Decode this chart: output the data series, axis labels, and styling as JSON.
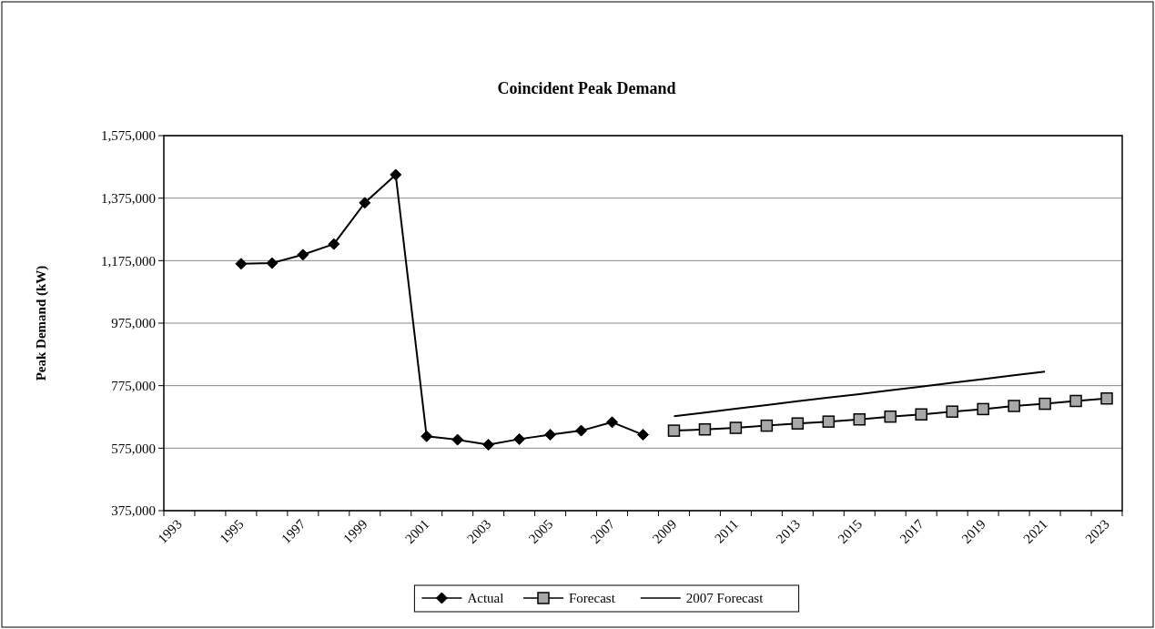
{
  "chart_data": {
    "type": "line",
    "title": "Coincident Peak Demand",
    "ylabel": "Peak Demand (kW)",
    "categories": [
      "1993",
      null,
      "1995",
      null,
      "1997",
      null,
      "1999",
      null,
      "2001",
      null,
      "2003",
      null,
      "2005",
      null,
      "2007",
      null,
      "2009",
      null,
      "2011",
      null,
      "2013",
      null,
      "2015",
      null,
      "2017",
      null,
      "2019",
      null,
      "2021",
      null,
      "2023"
    ],
    "series": [
      {
        "name": "Actual",
        "color": "#000000",
        "marker": "diamond",
        "values": [
          null,
          null,
          1165000,
          1167000,
          1194000,
          1228000,
          1360000,
          1450000,
          613000,
          602000,
          586000,
          604000,
          618000,
          631000,
          658000,
          618000,
          null,
          null,
          null,
          null,
          null,
          null,
          null,
          null,
          null,
          null,
          null,
          null,
          null,
          null,
          null
        ]
      },
      {
        "name": "Forecast",
        "color": "#000000",
        "marker": "square",
        "values": [
          null,
          null,
          null,
          null,
          null,
          null,
          null,
          null,
          null,
          null,
          null,
          null,
          null,
          null,
          null,
          null,
          631000,
          635000,
          640000,
          647000,
          654000,
          660000,
          667000,
          676000,
          683000,
          692000,
          700000,
          710000,
          717000,
          726000,
          734000
        ]
      },
      {
        "name": "2007 Forecast",
        "color": "#000000",
        "marker": "none",
        "values": [
          null,
          null,
          null,
          null,
          null,
          null,
          null,
          null,
          null,
          null,
          null,
          null,
          null,
          null,
          null,
          null,
          677000,
          689000,
          701000,
          713000,
          725000,
          737000,
          748000,
          760000,
          772000,
          784000,
          796000,
          808000,
          820000,
          null,
          null
        ]
      }
    ],
    "ylim": [
      375000,
      1575000
    ],
    "yticks": [
      {
        "value": 375000,
        "label": "375,000"
      },
      {
        "value": 575000,
        "label": "575,000"
      },
      {
        "value": 775000,
        "label": "775,000"
      },
      {
        "value": 975000,
        "label": "975,000"
      },
      {
        "value": 1175000,
        "label": "1,175,000"
      },
      {
        "value": 1375000,
        "label": "1,375,000"
      },
      {
        "value": 1575000,
        "label": "1,575,000"
      }
    ],
    "grid": "y",
    "legend": "bottom"
  }
}
